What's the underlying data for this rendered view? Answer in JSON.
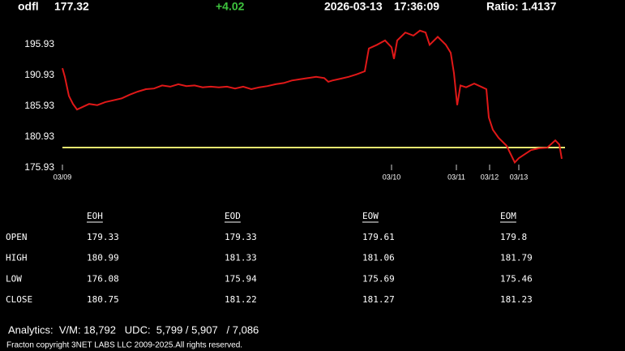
{
  "header": {
    "symbol": "odfl",
    "price": "177.32",
    "change": "+4.02",
    "date": "2026-03-13",
    "time": "17:36:09",
    "ratio": "Ratio: 1.4137"
  },
  "chart_data": {
    "type": "line",
    "x": [
      0,
      0.75,
      2,
      3.25,
      4.5,
      5.75,
      8.25,
      10.75,
      13.25,
      15.75,
      18.25,
      20.75,
      23.25,
      25.75,
      28.25,
      30.75,
      33.25,
      35.75,
      38.25,
      40.75,
      43.25,
      45.75,
      48.25,
      50.75,
      53.25,
      55.75,
      58.25,
      60.75,
      63.25,
      65.75,
      68.25,
      70.75,
      73.25,
      75.75,
      78.25,
      80.75,
      82,
      83.25,
      85.75,
      88.25,
      90.75,
      93.25,
      94.5,
      97,
      99.5,
      101.5,
      102.25,
      103.25,
      105.75,
      108.25,
      110.25,
      112,
      113.25,
      115.75,
      118.25,
      119.75,
      120.75,
      121.75,
      122.75,
      124.5,
      127,
      129.5,
      130.75,
      131.5,
      132.75,
      134.5,
      137,
      139.5,
      140.75,
      142.75,
      144.5,
      147,
      149.5,
      152,
      153.25,
      154
    ],
    "series": [
      {
        "name": "odfl",
        "color": "#e01818",
        "values": [
          192.1,
          190.7,
          187.6,
          186.3,
          185.4,
          185.7,
          186.3,
          186.1,
          186.6,
          186.9,
          187.2,
          187.8,
          188.3,
          188.7,
          188.8,
          189.3,
          189.1,
          189.5,
          189.2,
          189.3,
          189.0,
          189.1,
          189.0,
          189.1,
          188.8,
          189.1,
          188.7,
          189.0,
          189.2,
          189.5,
          189.7,
          190.1,
          190.3,
          190.5,
          190.7,
          190.5,
          189.9,
          190.1,
          190.4,
          190.7,
          191.1,
          191.6,
          195.3,
          195.9,
          196.6,
          195.5,
          193.6,
          196.6,
          197.9,
          197.4,
          198.2,
          197.9,
          195.9,
          197.2,
          195.9,
          194.6,
          191.3,
          186.1,
          189.3,
          189.0,
          189.6,
          189.0,
          188.7,
          184.1,
          182.1,
          180.8,
          179.5,
          176.8,
          177.5,
          178.2,
          178.8,
          179.1,
          179.2,
          180.4,
          179.7,
          177.4
        ]
      }
    ],
    "reference_line": {
      "value": 179.22,
      "color": "#e8e870"
    },
    "xlim": [
      0,
      155
    ],
    "xticks": [
      {
        "value": 0,
        "label": "03/09"
      },
      {
        "value": 101.5,
        "label": "03/10"
      },
      {
        "value": 121.5,
        "label": "03/11"
      },
      {
        "value": 131.75,
        "label": "03/12"
      },
      {
        "value": 140.75,
        "label": "03/13"
      }
    ],
    "ylim": [
      175,
      199
    ],
    "yticks": [
      175.93,
      180.93,
      185.93,
      190.93,
      195.93
    ],
    "grid": false
  },
  "table": {
    "columns": [
      "EOH",
      "EOD",
      "EOW",
      "EOM"
    ],
    "rows": [
      [
        "OPEN",
        "179.33",
        "179.33",
        "179.61",
        "179.8"
      ],
      [
        "HIGH",
        "180.99",
        "181.33",
        "181.06",
        "181.79"
      ],
      [
        "LOW",
        "176.08",
        "175.94",
        "175.69",
        "175.46"
      ],
      [
        "CLOSE",
        "180.75",
        "181.22",
        "181.27",
        "181.23"
      ]
    ]
  },
  "footer": {
    "analytics": "Analytics:  V/M: 18,792   UDC:  5,799 / 5,907   / 7,086",
    "copyright": "Fracton copyright 3NET LABS LLC 2009-2025.All rights reserved."
  }
}
